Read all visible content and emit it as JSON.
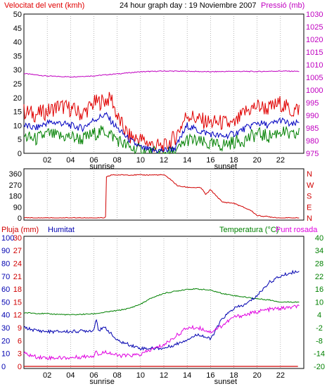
{
  "colors": {
    "wind": "#e00000",
    "wind_avg": "#0000c0",
    "gust_ok": "#008000",
    "pressure": "#c000c0",
    "humidity": "#0000b0",
    "rain": "#d00000",
    "temp": "#008000",
    "dew": "#e000e0",
    "axis": "#000000",
    "grid": "#888888"
  },
  "header": {
    "wind_title": "Velocitat del vent (kmh)",
    "graph_title": "24 hour graph day : 19 Noviembre 2007",
    "pressure_title": "Pressió (mb)"
  },
  "hour_labels": [
    "02",
    "04",
    "06",
    "08",
    "10",
    "12",
    "14",
    "16",
    "18",
    "20",
    "22"
  ],
  "markers": {
    "sunrise": "sunrise",
    "sunset": "sunset"
  },
  "chart_data": [
    {
      "type": "line",
      "name": "wind",
      "x_range_hours": [
        0,
        24
      ],
      "left_axis": {
        "ticks": [
          0,
          5,
          10,
          15,
          20,
          25,
          30,
          35,
          40,
          45,
          50
        ],
        "range": [
          0,
          50
        ]
      },
      "right_axis": {
        "ticks": [
          975,
          980,
          985,
          990,
          995,
          1000,
          1005,
          1010,
          1015,
          1020,
          1025,
          1030
        ],
        "range": [
          975,
          1030
        ]
      },
      "series": [
        {
          "key": "pressure",
          "hours": [
            0,
            2,
            4,
            6,
            8,
            10,
            12,
            14,
            16,
            18,
            20,
            22,
            23.5
          ],
          "values": [
            1006.5,
            1005.5,
            1005.2,
            1005.6,
            1006.4,
            1007.2,
            1007.5,
            1007.4,
            1007.2,
            1007.4,
            1007.3,
            1007.5,
            1007.4
          ]
        },
        {
          "key": "wind_max",
          "hours": [
            0,
            1,
            2,
            3,
            4,
            5,
            6,
            7,
            7.5,
            8,
            9,
            10,
            11,
            12,
            13,
            14,
            15,
            16,
            17,
            18,
            19,
            20,
            21,
            22,
            23,
            23.5
          ],
          "values": [
            15,
            14,
            15,
            17,
            16,
            14,
            18,
            19,
            20,
            13,
            6,
            5,
            3,
            2,
            6,
            14,
            12,
            11,
            11,
            10,
            15,
            17,
            16,
            18,
            15,
            16
          ]
        },
        {
          "key": "wind_avg",
          "hours": [
            0,
            1,
            2,
            3,
            4,
            5,
            6,
            7,
            8,
            9,
            10,
            11,
            12,
            13,
            14,
            15,
            16,
            17,
            18,
            19,
            20,
            21,
            22,
            23,
            23.5
          ],
          "values": [
            10,
            9,
            11,
            11,
            10,
            9,
            12,
            14,
            9,
            5,
            2,
            1,
            1,
            2,
            10,
            8,
            7,
            6,
            7,
            9,
            11,
            10,
            12,
            10,
            11
          ]
        },
        {
          "key": "wind_min",
          "hours": [
            0,
            1,
            2,
            3,
            4,
            5,
            6,
            7,
            8,
            9,
            10,
            11,
            12,
            13,
            14,
            15,
            16,
            17,
            18,
            19,
            20,
            21,
            22,
            23,
            23.5
          ],
          "values": [
            6,
            5,
            7,
            6,
            6,
            5,
            7,
            8,
            5,
            2,
            1,
            0,
            0,
            0,
            5,
            4,
            3,
            3,
            4,
            5,
            7,
            6,
            8,
            6,
            7
          ]
        }
      ]
    },
    {
      "type": "line",
      "name": "direction",
      "x_range_hours": [
        0,
        24
      ],
      "left_axis": {
        "ticks": [
          0,
          90,
          180,
          270,
          360
        ],
        "range": [
          0,
          360
        ]
      },
      "right_axis_labels": [
        "N",
        "W",
        "S",
        "E",
        "N"
      ],
      "series": [
        {
          "key": "direction",
          "hours": [
            0,
            7,
            7.05,
            7.5,
            8,
            10,
            12,
            12.5,
            13.2,
            14,
            15.2,
            15.6,
            16,
            16.4,
            17,
            18,
            18.5,
            19.5,
            20,
            21,
            22,
            23.5
          ],
          "values": [
            0,
            0,
            330,
            350,
            350,
            350,
            350,
            320,
            260,
            250,
            245,
            190,
            230,
            190,
            130,
            120,
            100,
            60,
            20,
            10,
            0,
            0
          ]
        }
      ]
    },
    {
      "type": "line",
      "name": "humidity-temperature",
      "x_range_hours": [
        0,
        24
      ],
      "left_axis_rain": {
        "ticks": [
          0,
          3,
          6,
          9,
          12,
          15,
          18,
          21,
          24,
          27,
          30
        ],
        "range": [
          0,
          30
        ]
      },
      "left_axis_humidity": {
        "ticks": [
          0,
          10,
          20,
          30,
          40,
          50,
          60,
          70,
          80,
          90,
          100
        ],
        "range": [
          0,
          100
        ]
      },
      "right_axis": {
        "ticks": [
          -20,
          -14,
          -8,
          -2,
          4,
          10,
          16,
          22,
          28,
          34,
          40
        ],
        "range": [
          -20,
          40
        ]
      },
      "legend_left": [
        "Pluja (mm)",
        "Humitat"
      ],
      "legend_right": [
        "Temperatura (°C)",
        "Punt rosada"
      ],
      "series": [
        {
          "key": "temp",
          "hours": [
            0,
            2,
            4,
            6,
            8,
            9,
            10,
            11,
            12,
            13,
            14,
            15,
            16,
            17,
            18,
            20,
            21,
            22,
            23.5
          ],
          "values": [
            5,
            4.5,
            4,
            4.5,
            6,
            7,
            9,
            12,
            14,
            15,
            16,
            16,
            15.5,
            14,
            13,
            11.5,
            11,
            10,
            10
          ]
        },
        {
          "key": "humidity",
          "hours": [
            0,
            1,
            2,
            4,
            6,
            6.2,
            6.4,
            7,
            8,
            9,
            10,
            11,
            12,
            13,
            14,
            15,
            16,
            17,
            18,
            19,
            20,
            21,
            22,
            23,
            23.5
          ],
          "values": [
            30,
            28,
            27,
            27,
            28,
            38,
            28,
            30,
            20,
            17,
            14,
            14,
            14,
            17,
            21,
            25,
            21,
            37,
            45,
            48,
            55,
            65,
            70,
            73,
            74
          ]
        },
        {
          "key": "dew",
          "hours": [
            0,
            1,
            2,
            4,
            6,
            6.2,
            6.4,
            7,
            8,
            9,
            10,
            11,
            12,
            13,
            14,
            15,
            16,
            17,
            18,
            19,
            20,
            21,
            22,
            23,
            23.5
          ],
          "values": [
            -14,
            -15.5,
            -16,
            -16,
            -15,
            -12,
            -15,
            -13,
            -15,
            -15,
            -14.5,
            -12,
            -10,
            -6,
            -2,
            -2,
            -4,
            -1,
            3,
            4,
            5.5,
            6.5,
            7,
            7.5,
            8
          ]
        },
        {
          "key": "rain",
          "hours": [
            0,
            23.5
          ],
          "values": [
            0,
            0
          ]
        }
      ]
    }
  ]
}
